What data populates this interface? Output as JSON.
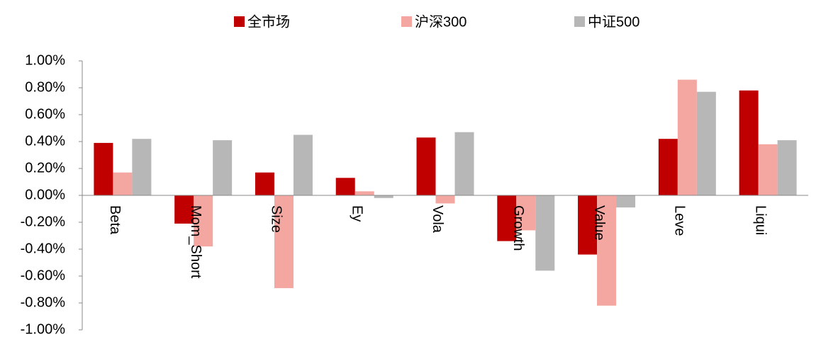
{
  "chart_data": {
    "type": "bar",
    "categories": [
      "Beta",
      "Mom_Short",
      "Size",
      "Ey",
      "Vola",
      "Growth",
      "Value",
      "Leve",
      "Liqui"
    ],
    "series": [
      {
        "name": "全市场",
        "color": "#c00000",
        "values": [
          0.39,
          -0.21,
          0.17,
          0.13,
          0.43,
          -0.34,
          -0.44,
          0.42,
          0.78
        ]
      },
      {
        "name": "沪深300",
        "color": "#f4a6a0",
        "values": [
          0.17,
          -0.38,
          -0.69,
          0.03,
          -0.06,
          -0.26,
          -0.82,
          0.86,
          0.38
        ]
      },
      {
        "name": "中证500",
        "color": "#b7b7b7",
        "values": [
          0.42,
          0.41,
          0.45,
          -0.02,
          0.47,
          -0.56,
          -0.09,
          0.77,
          0.41
        ]
      }
    ],
    "ylim": [
      -1,
      1
    ],
    "yticks": [
      {
        "value": -1,
        "label": "-1.00%"
      },
      {
        "value": -0.8,
        "label": "-0.80%"
      },
      {
        "value": -0.6,
        "label": "-0.60%"
      },
      {
        "value": -0.4,
        "label": "-0.40%"
      },
      {
        "value": -0.2,
        "label": "-0.20%"
      },
      {
        "value": 0,
        "label": "0.00%"
      },
      {
        "value": 0.2,
        "label": "0.20%"
      },
      {
        "value": 0.4,
        "label": "0.40%"
      },
      {
        "value": 0.6,
        "label": "0.60%"
      },
      {
        "value": 0.8,
        "label": "0.80%"
      },
      {
        "value": 1,
        "label": "1.00%"
      }
    ],
    "legend": "top"
  }
}
